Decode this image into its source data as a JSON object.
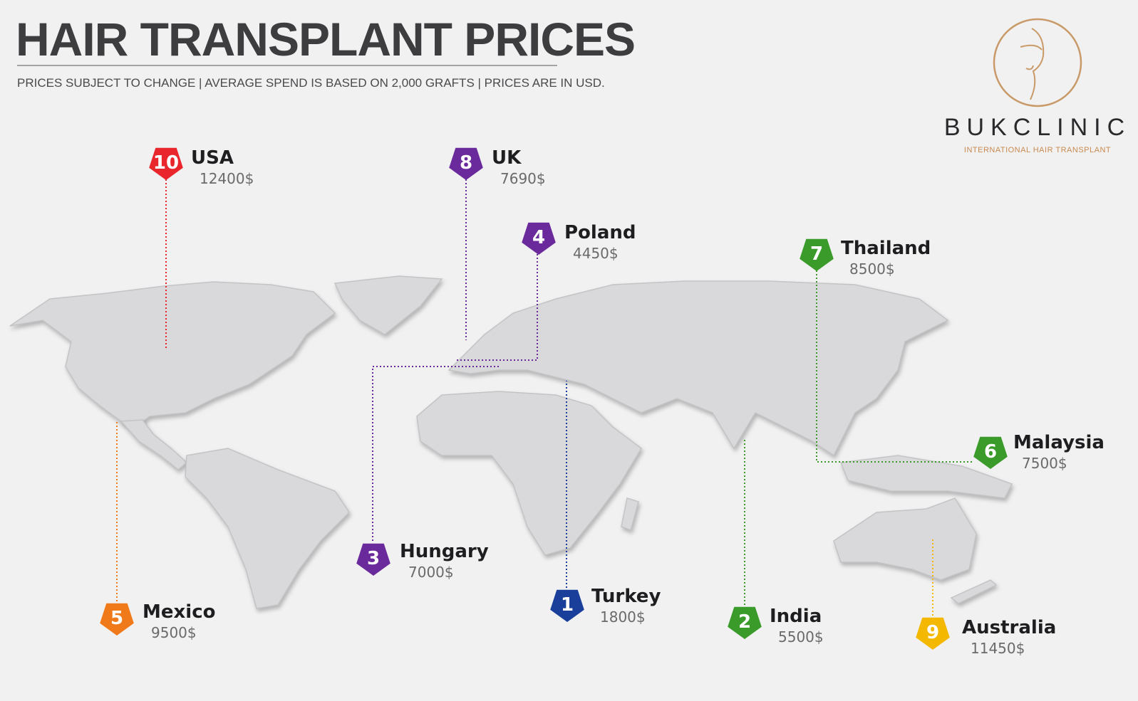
{
  "header": {
    "title": "HAIR TRANSPLANT PRICES",
    "subtitle": "PRICES SUBJECT TO CHANGE | AVERAGE SPEND IS BASED ON 2,000 GRAFTS | PRICES ARE IN USD."
  },
  "logo": {
    "name": "BUKCLINIC",
    "tagline": "INTERNATIONAL HAIR TRANSPLANT"
  },
  "countries": [
    {
      "rank": 10,
      "name": "USA",
      "price": "12400$"
    },
    {
      "rank": 8,
      "name": "UK",
      "price": "7690$"
    },
    {
      "rank": 4,
      "name": "Poland",
      "price": "4450$"
    },
    {
      "rank": 7,
      "name": "Thailand",
      "price": "8500$"
    },
    {
      "rank": 6,
      "name": "Malaysia",
      "price": "7500$"
    },
    {
      "rank": 3,
      "name": "Hungary",
      "price": "7000$"
    },
    {
      "rank": 5,
      "name": "Mexico",
      "price": "9500$"
    },
    {
      "rank": 1,
      "name": "Turkey",
      "price": "1800$"
    },
    {
      "rank": 2,
      "name": "India",
      "price": "5500$"
    },
    {
      "rank": 9,
      "name": "Australia",
      "price": "11450$"
    }
  ]
}
